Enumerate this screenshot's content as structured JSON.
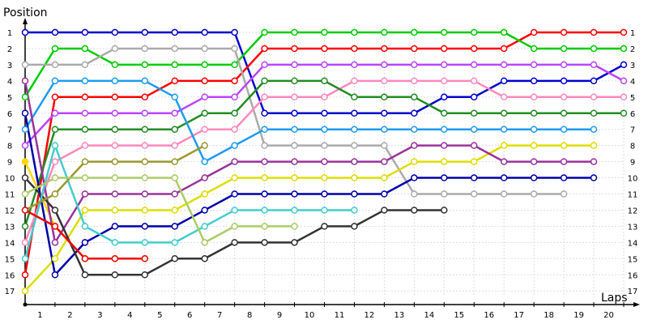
{
  "chart_data": {
    "type": "line",
    "ylabel": "Position",
    "xlabel": "Laps",
    "x_ticks": [
      1,
      2,
      3,
      4,
      5,
      6,
      7,
      8,
      9,
      10,
      11,
      12,
      13,
      14,
      15,
      16,
      17,
      18,
      19,
      20
    ],
    "y_ticks": [
      1,
      2,
      3,
      4,
      5,
      6,
      7,
      8,
      9,
      10,
      11,
      12,
      13,
      14,
      15,
      16,
      17
    ],
    "xlim": [
      0,
      20
    ],
    "ylim": [
      17,
      1
    ],
    "y_inverted": true,
    "grid": true,
    "series": [
      {
        "color": "#0000cc",
        "start": 0,
        "positions": [
          1,
          1,
          1,
          1,
          1,
          1,
          1,
          1,
          6,
          6,
          6,
          6,
          6,
          6,
          5,
          5,
          4,
          4,
          4,
          4,
          3
        ]
      },
      {
        "color": "#ff0000",
        "start": 0,
        "positions": [
          16,
          5,
          5,
          5,
          5,
          4,
          4,
          4,
          2,
          2,
          2,
          2,
          2,
          2,
          2,
          2,
          2,
          1,
          1,
          1,
          1
        ]
      },
      {
        "color": "#00cc00",
        "start": 0,
        "positions": [
          5,
          2,
          2,
          3,
          3,
          3,
          3,
          3,
          1,
          1,
          1,
          1,
          1,
          1,
          1,
          1,
          1,
          2,
          2,
          2,
          2
        ]
      },
      {
        "color": "#aaaaaa",
        "start": 0,
        "positions": [
          3,
          3,
          3,
          2,
          2,
          2,
          2,
          2,
          8,
          8,
          8,
          8,
          8,
          11,
          11,
          11,
          11,
          11,
          11
        ]
      },
      {
        "color": "#bb44ff",
        "start": 0,
        "positions": [
          8,
          6,
          6,
          6,
          6,
          6,
          5,
          5,
          3,
          3,
          3,
          3,
          3,
          3,
          3,
          3,
          3,
          3,
          3,
          3,
          4
        ]
      },
      {
        "color": "#ff88bb",
        "start": 0,
        "positions": [
          14,
          9,
          8,
          8,
          8,
          8,
          7,
          7,
          5,
          5,
          5,
          4,
          4,
          4,
          4,
          4,
          5,
          5,
          5,
          5,
          5
        ]
      },
      {
        "color": "#228B22",
        "start": 0,
        "positions": [
          13,
          7,
          7,
          7,
          7,
          7,
          6,
          6,
          4,
          4,
          4,
          5,
          5,
          5,
          6,
          6,
          6,
          6,
          6,
          6,
          6
        ]
      },
      {
        "color": "#1e9bf0",
        "start": 0,
        "positions": [
          7,
          4,
          4,
          4,
          4,
          5,
          9,
          8,
          7,
          7,
          7,
          7,
          7,
          7,
          7,
          7,
          7,
          7,
          7,
          7
        ]
      },
      {
        "color": "#ffd700",
        "start": 0,
        "positions": [
          9,
          13,
          15,
          15,
          15
        ]
      },
      {
        "color": "#dddd00",
        "start": 0,
        "positions": [
          17,
          15,
          12,
          12,
          12,
          12,
          11,
          10,
          10,
          10,
          10,
          10,
          10,
          9,
          9,
          9,
          8,
          8,
          8,
          8
        ]
      },
      {
        "color": "#993399",
        "start": 0,
        "positions": [
          4,
          14,
          11,
          11,
          11,
          11,
          10,
          9,
          9,
          9,
          9,
          9,
          9,
          8,
          8,
          8,
          9,
          9,
          9,
          9
        ]
      },
      {
        "color": "#0000aa",
        "start": 0,
        "positions": [
          6,
          16,
          14,
          13,
          13,
          13,
          12,
          11,
          11,
          11,
          11,
          11,
          11,
          10,
          10,
          10,
          10,
          10,
          10,
          10
        ]
      },
      {
        "color": "#333333",
        "start": 0,
        "positions": [
          10,
          12,
          16,
          16,
          16,
          15,
          15,
          14,
          14,
          14,
          13,
          13,
          12,
          12,
          12
        ]
      },
      {
        "color": "#44cccc",
        "start": 0,
        "positions": [
          15,
          8,
          13,
          14,
          14,
          14,
          13,
          12,
          12,
          12,
          12,
          12
        ]
      },
      {
        "color": "#999933",
        "start": 0,
        "positions": [
          12,
          11,
          9,
          9,
          9,
          9,
          8
        ]
      },
      {
        "color": "#aacc66",
        "start": 0,
        "positions": [
          11,
          10,
          10,
          10,
          10,
          10,
          14,
          13,
          13,
          13
        ]
      },
      {
        "color": "#ee0000",
        "start": 0,
        "positions": [
          12,
          13,
          15,
          15,
          15
        ]
      }
    ]
  }
}
